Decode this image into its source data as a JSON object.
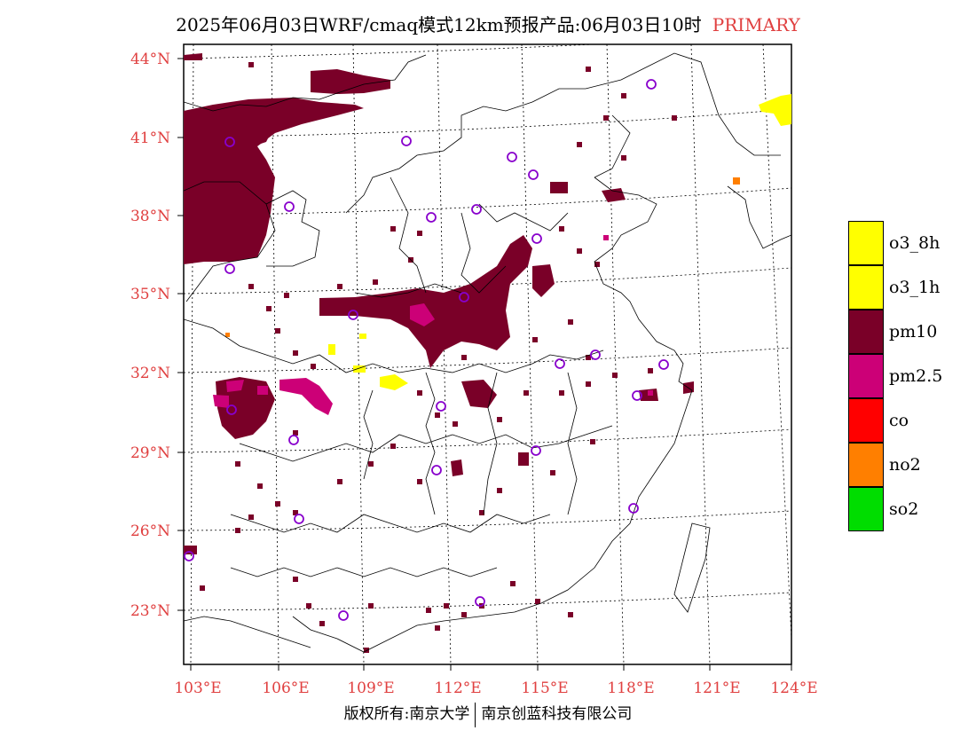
{
  "title": {
    "main": "2025年06月03日WRF/cmaq模式12km预报产品:06月03日10时",
    "tag": "PRIMARY",
    "tag_color": "#e04040"
  },
  "axes": {
    "lat_labels": [
      "44°N",
      "41°N",
      "38°N",
      "35°N",
      "32°N",
      "29°N",
      "26°N",
      "23°N"
    ],
    "lon_labels": [
      "103°E",
      "106°E",
      "109°E",
      "112°E",
      "115°E",
      "118°E",
      "121°E",
      "124°E"
    ],
    "label_color": "#e04040"
  },
  "legend": [
    {
      "name": "o3_8h",
      "color": "#ffff00"
    },
    {
      "name": "o3_1h",
      "color": "#ffff00"
    },
    {
      "name": "pm10",
      "color": "#7a0028"
    },
    {
      "name": "pm2.5",
      "color": "#cc0077"
    },
    {
      "name": "co",
      "color": "#ff0000"
    },
    {
      "name": "no2",
      "color": "#ff7f00"
    },
    {
      "name": "so2",
      "color": "#00dd00"
    }
  ],
  "footer": {
    "left": "版权所有:南京大学",
    "right": "南京创蓝科技有限公司"
  },
  "stations_color": "#8800cc"
}
